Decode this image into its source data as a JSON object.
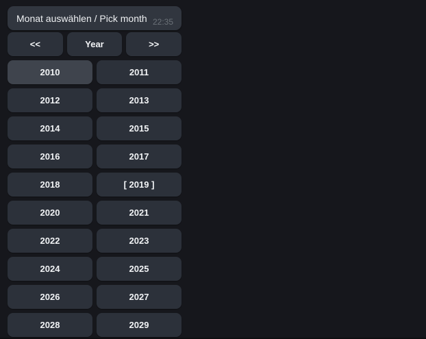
{
  "message": {
    "text": "Monat auswählen / Pick month",
    "time": "22:35"
  },
  "keyboard": {
    "nav": {
      "prev": "<<",
      "mode": "Year",
      "next": ">>"
    },
    "years": [
      "2010",
      "2011",
      "2012",
      "2013",
      "2014",
      "2015",
      "2016",
      "2017",
      "2018",
      "[ 2019 ]",
      "2020",
      "2021",
      "2022",
      "2023",
      "2024",
      "2025",
      "2026",
      "2027",
      "2028",
      "2029"
    ]
  },
  "state": {
    "hovered_year": "2010",
    "selected_year": "2019"
  },
  "colors": {
    "background": "#16171c",
    "bubble": "#31363f",
    "button": "#2c313a",
    "button_hover": "#3f444d",
    "text": "#eef0f2",
    "timestamp": "#6b7178"
  }
}
